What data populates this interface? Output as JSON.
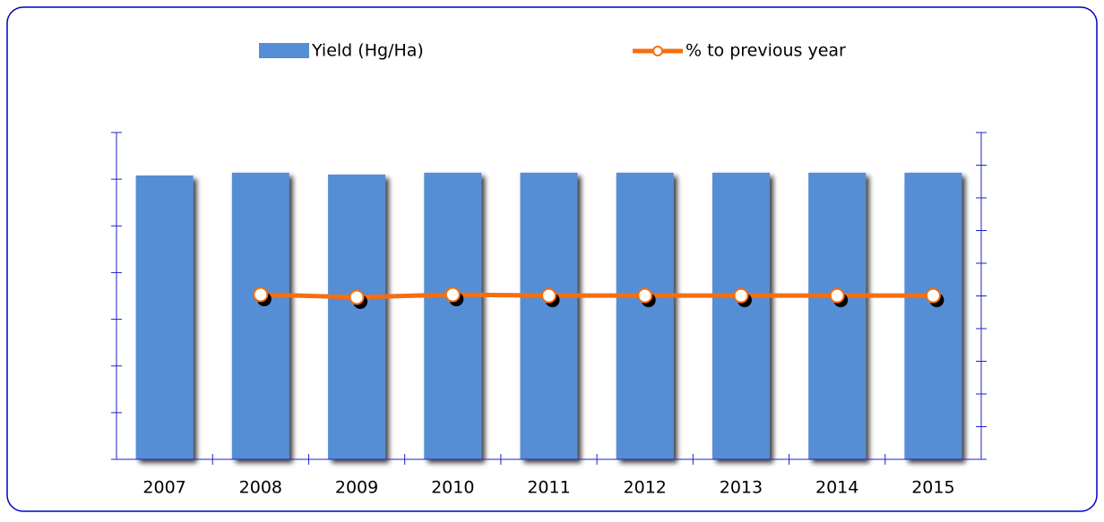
{
  "chart_data": {
    "type": "bar-line",
    "categories": [
      "2007",
      "2008",
      "2009",
      "2010",
      "2011",
      "2012",
      "2013",
      "2014",
      "2015"
    ],
    "series": [
      {
        "name": "Yield (Hg/Ha)",
        "color": "#558ed5",
        "type": "bar",
        "values": [
          6.08,
          6.14,
          6.1,
          6.14,
          6.14,
          6.14,
          6.14,
          6.14,
          6.14
        ]
      },
      {
        "name": "% to previous year",
        "color": "#f56e0f",
        "type": "line",
        "axis": "y2",
        "values": [
          null,
          5.04,
          4.96,
          5.04,
          5.01,
          5.01,
          5.01,
          5.01,
          5.01
        ]
      }
    ],
    "ylim": [
      0,
      7
    ],
    "yticks": [
      0,
      1,
      2,
      3,
      4,
      5,
      6,
      7
    ],
    "y2lim": [
      0,
      10
    ],
    "y2ticks": [
      0,
      1,
      2,
      3,
      4,
      5,
      6,
      7,
      8,
      9,
      10
    ]
  }
}
